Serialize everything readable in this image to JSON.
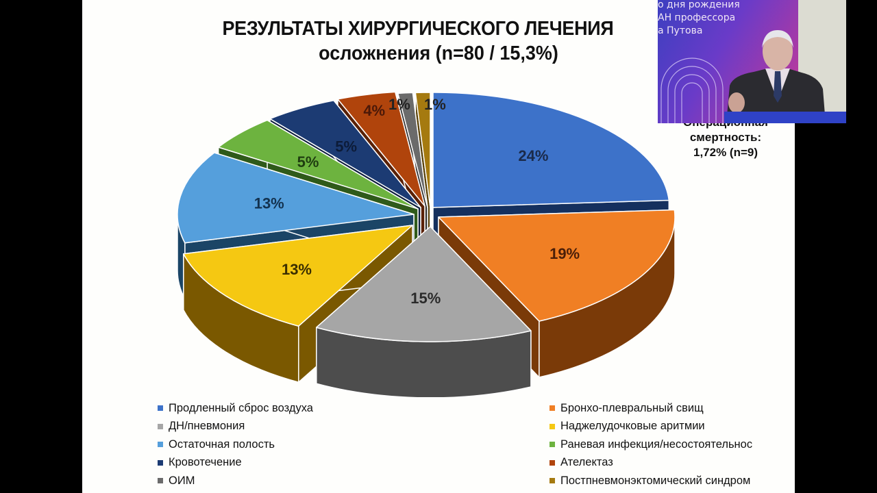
{
  "slide": {
    "title_line1": "РЕЗУЛЬТАТЫ ХИРУРГИЧЕСКОГО ЛЕЧЕНИЯ",
    "title_line2": "осложнения (n=80 / 15,3%)",
    "mortality": {
      "line1": "Операционная",
      "line2": "смертность:",
      "line3": "1,72% (n=9)"
    }
  },
  "video_overlay": {
    "banner_lines": [
      "о дня рождения",
      "АН профессора",
      "а Путова"
    ],
    "description": "speaker-at-podium"
  },
  "chart_data": {
    "type": "pie",
    "style": "3d-exploded",
    "title": "РЕЗУЛЬТАТЫ ХИРУРГИЧЕСКОГО ЛЕЧЕНИЯ — осложнения (n=80 / 15,3%)",
    "legend_position": "bottom",
    "categories": [
      "Продленный сброс воздуха",
      "Бронхо-плевральный свищ",
      "ДН/пневмония",
      "Наджелудочковые аритмии",
      "Остаточная полость",
      "Раневая инфекция/несостоятельнос",
      "Кровотечение",
      "Ателектаз",
      "ОИМ",
      "Постпневмонэктомический синдром"
    ],
    "values": [
      24,
      19,
      15,
      13,
      13,
      5,
      5,
      4,
      1,
      1
    ],
    "labels": [
      "24%",
      "19%",
      "15%",
      "13%",
      "13%",
      "5%",
      "5%",
      "4%",
      "1%",
      "1%"
    ],
    "colors": [
      "#3d72c9",
      "#f07f24",
      "#a6a6a6",
      "#f5c812",
      "#559fdc",
      "#6db33f",
      "#1c3b73",
      "#b0440c",
      "#6b6b6b",
      "#a57a10"
    ],
    "side_colors": [
      "#15305e",
      "#7a3a08",
      "#4d4d4d",
      "#7a5800",
      "#1b4566",
      "#2f5a1a",
      "#0e1f3d",
      "#5a2106",
      "#333333",
      "#5a420a"
    ],
    "label_colors": [
      "#1a2a4a",
      "#4a1e08",
      "#2a2a2a",
      "#3a2e00",
      "#13324f",
      "#1f3d10",
      "#0c1b38",
      "#4a1808",
      "#222222",
      "#222222"
    ]
  }
}
